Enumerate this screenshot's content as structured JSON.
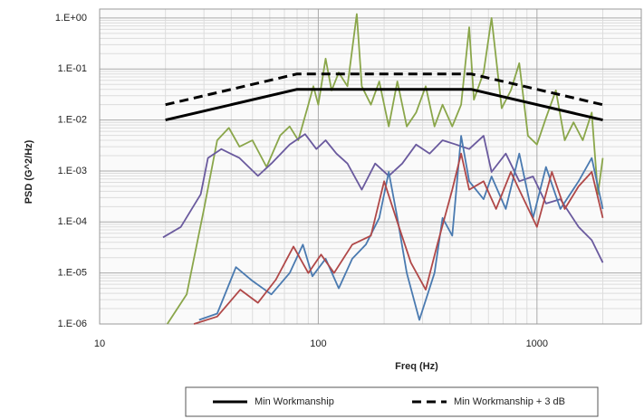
{
  "chart_data": {
    "type": "line",
    "y_label": "PSD (G^2/Hz)",
    "x_label": "Freq (Hz)",
    "xscale": "log",
    "yscale": "log",
    "xlim": [
      10,
      3000
    ],
    "ylim": [
      1e-06,
      1.5
    ],
    "xticks": [
      10,
      100,
      1000
    ],
    "yticks": [
      {
        "value": 1,
        "label": "1.E+00"
      },
      {
        "value": 0.1,
        "label": "1.E-01"
      },
      {
        "value": 0.01,
        "label": "1.E-02"
      },
      {
        "value": 0.001,
        "label": "1.E-03"
      },
      {
        "value": 0.0001,
        "label": "1.E-04"
      },
      {
        "value": 1e-05,
        "label": "1.E-05"
      },
      {
        "value": 1e-06,
        "label": "1.E-06"
      }
    ],
    "grid": true,
    "minor_grid": true,
    "legend": "bottom",
    "series": [
      {
        "color": "#8aa64a",
        "x": [
          20.4,
          25,
          30,
          34.5,
          39,
          43.6,
          50,
          58,
          67,
          74,
          81,
          90,
          95,
          100,
          108,
          115,
          124,
          136,
          150,
          158,
          174,
          190,
          210,
          230,
          254,
          280,
          310,
          340,
          370,
          410,
          450,
          490,
          515,
          570,
          620,
          690,
          760,
          830,
          910,
          1000,
          1100,
          1220,
          1340,
          1470,
          1620,
          1780,
          1900,
          2000
        ],
        "values": [
          1e-06,
          3.8e-06,
          0.00018,
          0.004,
          0.007,
          0.003,
          0.004,
          0.0012,
          0.005,
          0.0075,
          0.004,
          0.02,
          0.046,
          0.02,
          0.16,
          0.038,
          0.085,
          0.046,
          1.2,
          0.046,
          0.02,
          0.057,
          0.0075,
          0.057,
          0.0075,
          0.014,
          0.046,
          0.0075,
          0.02,
          0.0075,
          0.02,
          0.66,
          0.025,
          0.085,
          1.0,
          0.017,
          0.038,
          0.13,
          0.0049,
          0.0033,
          0.011,
          0.038,
          0.004,
          0.009,
          0.004,
          0.014,
          0.00035,
          0.0018
        ]
      },
      {
        "color": "#6a5a9e",
        "x": [
          19.5,
          23.5,
          29,
          31.3,
          36,
          43.6,
          53,
          61,
          74,
          87,
          98,
          108,
          121,
          136,
          158,
          182,
          210,
          242,
          280,
          323,
          370,
          426,
          490,
          570,
          620,
          720,
          830,
          960,
          1100,
          1280,
          1550,
          1780,
          2000
        ],
        "values": [
          5e-05,
          8e-05,
          0.00035,
          0.0018,
          0.0027,
          0.0018,
          0.0008,
          0.0014,
          0.0033,
          0.0053,
          0.0027,
          0.004,
          0.0022,
          0.0014,
          0.00043,
          0.0014,
          0.0008,
          0.0014,
          0.0033,
          0.0022,
          0.004,
          0.0033,
          0.0027,
          0.0049,
          0.00096,
          0.0022,
          0.00063,
          0.00078,
          0.00023,
          0.00028,
          8e-05,
          4.4e-05,
          1.6e-05
        ]
      },
      {
        "color": "#4a7ab0",
        "x": [
          28.5,
          34.5,
          42,
          50,
          61,
          74,
          85,
          94,
          108,
          124,
          143,
          165,
          190,
          210,
          230,
          254,
          290,
          340,
          370,
          410,
          450,
          490,
          570,
          620,
          720,
          830,
          960,
          1100,
          1280,
          1550,
          1780,
          2000
        ],
        "values": [
          1.2e-06,
          1.6e-06,
          1.3e-05,
          7e-06,
          3.8e-06,
          1e-05,
          3.6e-05,
          8.6e-06,
          1.9e-05,
          5e-06,
          1.9e-05,
          3.6e-05,
          0.00012,
          0.00096,
          0.00012,
          1e-05,
          1.2e-06,
          1e-05,
          0.00012,
          5.4e-05,
          0.0049,
          0.00063,
          0.00028,
          0.00078,
          0.00018,
          0.0022,
          0.00012,
          0.0012,
          0.00018,
          0.00063,
          0.0018,
          0.00018
        ]
      },
      {
        "color": "#b04848",
        "x": [
          27,
          34.5,
          44,
          53,
          64,
          77,
          90,
          103,
          118,
          143,
          174,
          200,
          230,
          265,
          310,
          350,
          410,
          450,
          490,
          570,
          650,
          760,
          870,
          1000,
          1170,
          1340,
          1550,
          1780,
          2000
        ],
        "values": [
          1e-06,
          1.4e-06,
          4.7e-06,
          2.6e-06,
          7.4e-06,
          3.3e-05,
          1e-05,
          2.3e-05,
          1e-05,
          3.6e-05,
          5.4e-05,
          0.00063,
          0.0001,
          1.6e-05,
          4.7e-06,
          3.6e-05,
          0.00043,
          0.0022,
          0.00043,
          0.00063,
          0.00018,
          0.00096,
          0.00028,
          8e-05,
          0.00096,
          0.00018,
          0.0005,
          0.00096,
          0.00012
        ]
      },
      {
        "name": "Min Workmanship",
        "color": "#000000",
        "x": [
          20,
          80,
          500,
          2000
        ],
        "values": [
          0.01,
          0.04,
          0.04,
          0.01
        ]
      },
      {
        "name": "Min Workmanship + 3 dB",
        "color": "#000000",
        "dash": true,
        "x": [
          20,
          80,
          500,
          2000
        ],
        "values": [
          0.02,
          0.08,
          0.08,
          0.02
        ]
      }
    ]
  }
}
